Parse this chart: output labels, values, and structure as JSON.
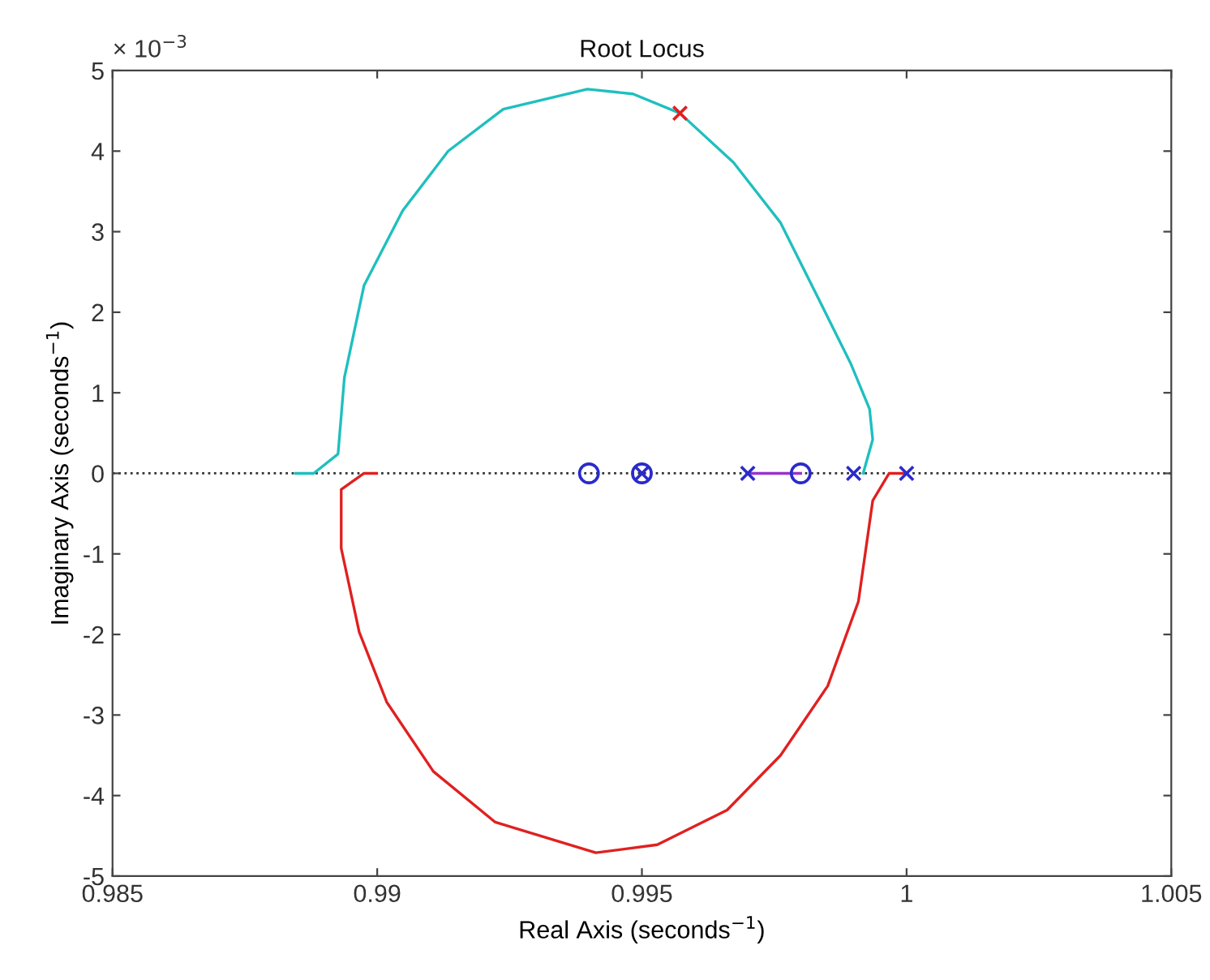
{
  "chart_data": {
    "type": "line",
    "title": "Root Locus",
    "xlabel": "Real Axis (seconds$^{−1}$)",
    "ylabel": "Imaginary Axis (seconds$^{−1}$)",
    "annotations": [
      "× 10$^{−3}$"
    ],
    "xlim": [
      0.985,
      1.005
    ],
    "xticks": [
      0.985,
      0.99,
      0.995,
      1,
      1.005
    ],
    "ylim": [
      -5,
      5
    ],
    "yticks": [
      -5,
      -4,
      -3,
      -2,
      -1,
      0,
      1,
      2,
      3,
      4,
      5
    ],
    "grid": false,
    "legend": false,
    "ref_lines": [
      {
        "axis": "y",
        "value": 0,
        "color": "#333333",
        "line_style": "dotted"
      }
    ],
    "series": [
      {
        "color": "#1fbfbf",
        "x": [
          0.98846,
          0.9888,
          0.98926,
          0.98938,
          0.98975,
          0.99048,
          0.99134,
          0.99238,
          0.99397,
          0.99483,
          0.99572,
          0.99673,
          0.99762,
          0.99835,
          0.99894,
          0.9993,
          0.99936,
          0.99918
        ],
        "values": [
          0,
          0,
          0.24,
          1.19,
          2.33,
          3.26,
          4.0,
          4.52,
          4.77,
          4.71,
          4.47,
          3.86,
          3.11,
          2.15,
          1.37,
          0.8,
          0.42,
          0
        ]
      },
      {
        "color": "#e02020",
        "x": [
          0.98999,
          0.98975,
          0.98932,
          0.98932,
          0.98966,
          0.99018,
          0.99106,
          0.99223,
          0.99413,
          0.99529,
          0.99661,
          0.99762,
          0.99851,
          0.99909,
          0.99936,
          0.99967,
          0.99995
        ],
        "values": [
          0,
          0,
          -0.2,
          -0.93,
          -1.97,
          -2.84,
          -3.7,
          -4.33,
          -4.71,
          -4.61,
          -4.18,
          -3.5,
          -2.64,
          -1.59,
          -0.34,
          0,
          0
        ]
      },
      {
        "color": "#9933cc",
        "x": [
          0.997,
          0.998
        ],
        "values": [
          0,
          0
        ]
      },
      {
        "type": "scatter",
        "marker": "cross",
        "color": "#2a2acc",
        "x": [
          0.995,
          0.997,
          0.999,
          1.0
        ],
        "values": [
          0,
          0,
          0,
          0
        ]
      },
      {
        "type": "scatter",
        "marker": "circle",
        "color": "#2a2acc",
        "x": [
          0.994,
          0.995,
          0.998
        ],
        "values": [
          0,
          0,
          0
        ]
      },
      {
        "type": "scatter",
        "marker": "cross",
        "color": "#e02020",
        "x": [
          0.99572
        ],
        "values": [
          4.47
        ]
      }
    ]
  }
}
